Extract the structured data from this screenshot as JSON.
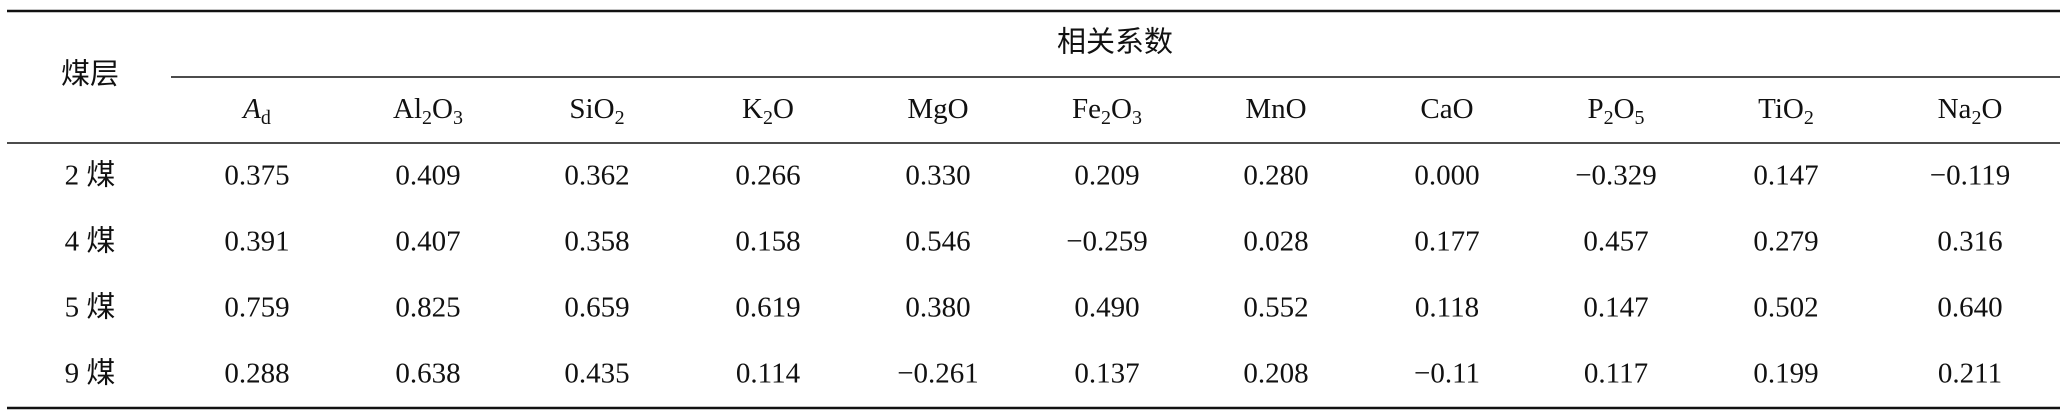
{
  "table": {
    "row_header": "煤层",
    "group_header": "相关系数",
    "columns": [
      [
        {
          "text": "A",
          "italic": true
        },
        {
          "sub": "d"
        }
      ],
      [
        {
          "text": "Al"
        },
        {
          "sub": "2"
        },
        {
          "text": "O"
        },
        {
          "sub": "3"
        }
      ],
      [
        {
          "text": "SiO"
        },
        {
          "sub": "2"
        }
      ],
      [
        {
          "text": "K"
        },
        {
          "sub": "2"
        },
        {
          "text": "O"
        }
      ],
      [
        {
          "text": "MgO"
        }
      ],
      [
        {
          "text": "Fe"
        },
        {
          "sub": "2"
        },
        {
          "text": "O"
        },
        {
          "sub": "3"
        }
      ],
      [
        {
          "text": "MnO"
        }
      ],
      [
        {
          "text": "CaO"
        }
      ],
      [
        {
          "text": "P"
        },
        {
          "sub": "2"
        },
        {
          "text": "O"
        },
        {
          "sub": "5"
        }
      ],
      [
        {
          "text": "TiO"
        },
        {
          "sub": "2"
        }
      ],
      [
        {
          "text": "Na"
        },
        {
          "sub": "2"
        },
        {
          "text": "O"
        }
      ]
    ],
    "rows": [
      {
        "label": "2 煤",
        "values": [
          "0.375",
          "0.409",
          "0.362",
          "0.266",
          "0.330",
          "0.209",
          "0.280",
          "0.000",
          "−0.329",
          "0.147",
          "−0.119"
        ]
      },
      {
        "label": "4 煤",
        "values": [
          "0.391",
          "0.407",
          "0.358",
          "0.158",
          "0.546",
          "−0.259",
          "0.028",
          "0.177",
          "0.457",
          "0.279",
          "0.316"
        ]
      },
      {
        "label": "5 煤",
        "values": [
          "0.759",
          "0.825",
          "0.659",
          "0.619",
          "0.380",
          "0.490",
          "0.552",
          "0.118",
          "0.147",
          "0.502",
          "0.640"
        ]
      },
      {
        "label": "9 煤",
        "values": [
          "0.288",
          "0.638",
          "0.435",
          "0.114",
          "−0.261",
          "0.137",
          "0.208",
          "−0.11",
          "0.117",
          "0.199",
          "0.211"
        ]
      }
    ]
  }
}
